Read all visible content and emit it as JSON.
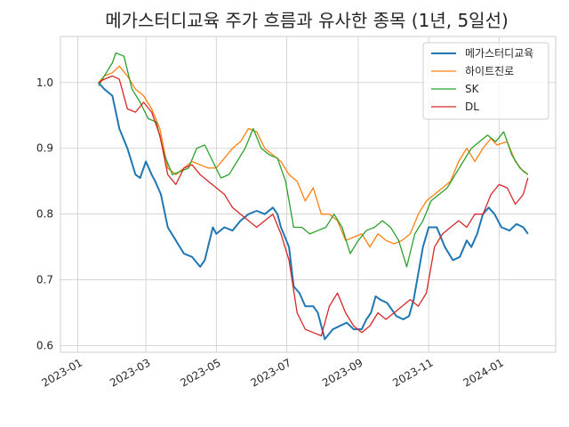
{
  "chart_data": {
    "type": "line",
    "title": "메가스터디교육 주가 흐름과 유사한 종목 (1년, 5일선)",
    "xlabel": "",
    "ylabel": "",
    "x_ticks": [
      "2023-01",
      "2023-03",
      "2023-05",
      "2023-07",
      "2023-09",
      "2023-11",
      "2024-01"
    ],
    "y_ticks": [
      "0.6",
      "0.7",
      "0.8",
      "0.9",
      "1.0"
    ],
    "xlim": [
      "2022-12-17",
      "2024-02-19"
    ],
    "ylim": [
      0.59,
      1.07
    ],
    "grid": true,
    "legend_position": "upper right",
    "series": [
      {
        "name": "메가스터디교육",
        "color": "#1f77b4",
        "points": [
          [
            "2023-01-19",
            1.0
          ],
          [
            "2023-01-24",
            0.99
          ],
          [
            "2023-01-31",
            0.98
          ],
          [
            "2023-02-06",
            0.93
          ],
          [
            "2023-02-13",
            0.9
          ],
          [
            "2023-02-20",
            0.86
          ],
          [
            "2023-02-24",
            0.855
          ],
          [
            "2023-03-01",
            0.88
          ],
          [
            "2023-03-06",
            0.86
          ],
          [
            "2023-03-09",
            0.85
          ],
          [
            "2023-03-14",
            0.83
          ],
          [
            "2023-03-20",
            0.78
          ],
          [
            "2023-03-27",
            0.76
          ],
          [
            "2023-04-03",
            0.74
          ],
          [
            "2023-04-10",
            0.735
          ],
          [
            "2023-04-17",
            0.72
          ],
          [
            "2023-04-21",
            0.73
          ],
          [
            "2023-04-28",
            0.78
          ],
          [
            "2023-05-01",
            0.77
          ],
          [
            "2023-05-08",
            0.78
          ],
          [
            "2023-05-15",
            0.775
          ],
          [
            "2023-05-22",
            0.79
          ],
          [
            "2023-05-29",
            0.8
          ],
          [
            "2023-06-05",
            0.805
          ],
          [
            "2023-06-12",
            0.8
          ],
          [
            "2023-06-19",
            0.81
          ],
          [
            "2023-06-23",
            0.8
          ],
          [
            "2023-06-26",
            0.78
          ],
          [
            "2023-07-03",
            0.75
          ],
          [
            "2023-07-07",
            0.69
          ],
          [
            "2023-07-12",
            0.68
          ],
          [
            "2023-07-17",
            0.66
          ],
          [
            "2023-07-24",
            0.66
          ],
          [
            "2023-07-28",
            0.65
          ],
          [
            "2023-08-03",
            0.61
          ],
          [
            "2023-08-10",
            0.625
          ],
          [
            "2023-08-16",
            0.63
          ],
          [
            "2023-08-22",
            0.635
          ],
          [
            "2023-08-28",
            0.625
          ],
          [
            "2023-09-04",
            0.625
          ],
          [
            "2023-09-08",
            0.64
          ],
          [
            "2023-09-12",
            0.65
          ],
          [
            "2023-09-16",
            0.675
          ],
          [
            "2023-09-20",
            0.67
          ],
          [
            "2023-09-26",
            0.665
          ],
          [
            "2023-10-04",
            0.645
          ],
          [
            "2023-10-10",
            0.64
          ],
          [
            "2023-10-15",
            0.645
          ],
          [
            "2023-10-19",
            0.67
          ],
          [
            "2023-10-24",
            0.72
          ],
          [
            "2023-10-27",
            0.75
          ],
          [
            "2023-11-01",
            0.78
          ],
          [
            "2023-11-08",
            0.78
          ],
          [
            "2023-11-15",
            0.75
          ],
          [
            "2023-11-22",
            0.73
          ],
          [
            "2023-11-28",
            0.735
          ],
          [
            "2023-12-04",
            0.76
          ],
          [
            "2023-12-08",
            0.75
          ],
          [
            "2023-12-13",
            0.77
          ],
          [
            "2023-12-18",
            0.8
          ],
          [
            "2023-12-23",
            0.81
          ],
          [
            "2023-12-28",
            0.8
          ],
          [
            "2024-01-03",
            0.78
          ],
          [
            "2024-01-10",
            0.775
          ],
          [
            "2024-01-16",
            0.785
          ],
          [
            "2024-01-22",
            0.78
          ],
          [
            "2024-01-26",
            0.77
          ]
        ]
      },
      {
        "name": "하이트진로",
        "color": "#ff7f0e",
        "points": [
          [
            "2023-01-19",
            1.0
          ],
          [
            "2023-01-24",
            1.01
          ],
          [
            "2023-01-31",
            1.015
          ],
          [
            "2023-02-06",
            1.025
          ],
          [
            "2023-02-13",
            1.01
          ],
          [
            "2023-02-20",
            0.99
          ],
          [
            "2023-02-27",
            0.98
          ],
          [
            "2023-03-06",
            0.96
          ],
          [
            "2023-03-13",
            0.93
          ],
          [
            "2023-03-20",
            0.87
          ],
          [
            "2023-03-27",
            0.86
          ],
          [
            "2023-04-03",
            0.87
          ],
          [
            "2023-04-10",
            0.88
          ],
          [
            "2023-04-17",
            0.875
          ],
          [
            "2023-04-24",
            0.87
          ],
          [
            "2023-05-01",
            0.87
          ],
          [
            "2023-05-08",
            0.885
          ],
          [
            "2023-05-15",
            0.9
          ],
          [
            "2023-05-22",
            0.91
          ],
          [
            "2023-05-29",
            0.93
          ],
          [
            "2023-06-05",
            0.925
          ],
          [
            "2023-06-12",
            0.9
          ],
          [
            "2023-06-19",
            0.89
          ],
          [
            "2023-06-26",
            0.88
          ],
          [
            "2023-07-03",
            0.86
          ],
          [
            "2023-07-10",
            0.85
          ],
          [
            "2023-07-17",
            0.82
          ],
          [
            "2023-07-24",
            0.84
          ],
          [
            "2023-07-31",
            0.8
          ],
          [
            "2023-08-07",
            0.8
          ],
          [
            "2023-08-14",
            0.79
          ],
          [
            "2023-08-21",
            0.76
          ],
          [
            "2023-08-28",
            0.765
          ],
          [
            "2023-09-04",
            0.77
          ],
          [
            "2023-09-11",
            0.75
          ],
          [
            "2023-09-18",
            0.77
          ],
          [
            "2023-09-25",
            0.76
          ],
          [
            "2023-10-02",
            0.755
          ],
          [
            "2023-10-09",
            0.76
          ],
          [
            "2023-10-16",
            0.77
          ],
          [
            "2023-10-23",
            0.8
          ],
          [
            "2023-10-30",
            0.82
          ],
          [
            "2023-11-06",
            0.83
          ],
          [
            "2023-11-13",
            0.84
          ],
          [
            "2023-11-20",
            0.85
          ],
          [
            "2023-11-27",
            0.88
          ],
          [
            "2023-12-04",
            0.9
          ],
          [
            "2023-12-11",
            0.88
          ],
          [
            "2023-12-18",
            0.9
          ],
          [
            "2023-12-25",
            0.915
          ],
          [
            "2023-12-30",
            0.905
          ],
          [
            "2024-01-08",
            0.91
          ],
          [
            "2024-01-15",
            0.88
          ],
          [
            "2024-01-22",
            0.865
          ],
          [
            "2024-01-26",
            0.86
          ]
        ]
      },
      {
        "name": "SK",
        "color": "#2ca02c",
        "points": [
          [
            "2023-01-19",
            0.995
          ],
          [
            "2023-01-24",
            1.01
          ],
          [
            "2023-01-31",
            1.03
          ],
          [
            "2023-02-03",
            1.045
          ],
          [
            "2023-02-10",
            1.04
          ],
          [
            "2023-02-17",
            0.99
          ],
          [
            "2023-02-24",
            0.97
          ],
          [
            "2023-03-03",
            0.945
          ],
          [
            "2023-03-10",
            0.94
          ],
          [
            "2023-03-17",
            0.89
          ],
          [
            "2023-03-24",
            0.86
          ],
          [
            "2023-03-31",
            0.865
          ],
          [
            "2023-04-07",
            0.87
          ],
          [
            "2023-04-14",
            0.9
          ],
          [
            "2023-04-21",
            0.905
          ],
          [
            "2023-04-28",
            0.88
          ],
          [
            "2023-05-05",
            0.855
          ],
          [
            "2023-05-12",
            0.86
          ],
          [
            "2023-05-19",
            0.88
          ],
          [
            "2023-05-26",
            0.9
          ],
          [
            "2023-06-02",
            0.93
          ],
          [
            "2023-06-09",
            0.9
          ],
          [
            "2023-06-16",
            0.89
          ],
          [
            "2023-06-23",
            0.885
          ],
          [
            "2023-06-30",
            0.85
          ],
          [
            "2023-07-07",
            0.78
          ],
          [
            "2023-07-14",
            0.78
          ],
          [
            "2023-07-21",
            0.77
          ],
          [
            "2023-07-28",
            0.775
          ],
          [
            "2023-08-04",
            0.78
          ],
          [
            "2023-08-11",
            0.8
          ],
          [
            "2023-08-18",
            0.78
          ],
          [
            "2023-08-25",
            0.74
          ],
          [
            "2023-09-01",
            0.76
          ],
          [
            "2023-09-08",
            0.775
          ],
          [
            "2023-09-15",
            0.78
          ],
          [
            "2023-09-22",
            0.79
          ],
          [
            "2023-09-29",
            0.78
          ],
          [
            "2023-10-06",
            0.76
          ],
          [
            "2023-10-13",
            0.72
          ],
          [
            "2023-10-20",
            0.77
          ],
          [
            "2023-10-27",
            0.79
          ],
          [
            "2023-11-03",
            0.82
          ],
          [
            "2023-11-10",
            0.83
          ],
          [
            "2023-11-17",
            0.84
          ],
          [
            "2023-11-24",
            0.86
          ],
          [
            "2023-12-01",
            0.88
          ],
          [
            "2023-12-08",
            0.9
          ],
          [
            "2023-12-15",
            0.91
          ],
          [
            "2023-12-22",
            0.92
          ],
          [
            "2023-12-29",
            0.91
          ],
          [
            "2024-01-05",
            0.925
          ],
          [
            "2024-01-12",
            0.89
          ],
          [
            "2024-01-19",
            0.87
          ],
          [
            "2024-01-26",
            0.86
          ]
        ]
      },
      {
        "name": "DL",
        "color": "#d62728",
        "points": [
          [
            "2023-01-19",
            1.0
          ],
          [
            "2023-01-24",
            1.005
          ],
          [
            "2023-01-31",
            1.01
          ],
          [
            "2023-02-06",
            1.005
          ],
          [
            "2023-02-13",
            0.96
          ],
          [
            "2023-02-20",
            0.955
          ],
          [
            "2023-02-27",
            0.97
          ],
          [
            "2023-03-06",
            0.955
          ],
          [
            "2023-03-13",
            0.92
          ],
          [
            "2023-03-20",
            0.86
          ],
          [
            "2023-03-27",
            0.845
          ],
          [
            "2023-04-03",
            0.87
          ],
          [
            "2023-04-10",
            0.875
          ],
          [
            "2023-04-17",
            0.86
          ],
          [
            "2023-04-24",
            0.85
          ],
          [
            "2023-05-01",
            0.84
          ],
          [
            "2023-05-08",
            0.83
          ],
          [
            "2023-05-15",
            0.81
          ],
          [
            "2023-05-22",
            0.8
          ],
          [
            "2023-05-29",
            0.79
          ],
          [
            "2023-06-05",
            0.78
          ],
          [
            "2023-06-12",
            0.79
          ],
          [
            "2023-06-19",
            0.8
          ],
          [
            "2023-06-26",
            0.77
          ],
          [
            "2023-07-03",
            0.73
          ],
          [
            "2023-07-10",
            0.65
          ],
          [
            "2023-07-17",
            0.625
          ],
          [
            "2023-07-24",
            0.62
          ],
          [
            "2023-07-31",
            0.615
          ],
          [
            "2023-08-07",
            0.66
          ],
          [
            "2023-08-14",
            0.68
          ],
          [
            "2023-08-21",
            0.65
          ],
          [
            "2023-08-28",
            0.63
          ],
          [
            "2023-09-04",
            0.62
          ],
          [
            "2023-09-11",
            0.63
          ],
          [
            "2023-09-18",
            0.65
          ],
          [
            "2023-09-25",
            0.64
          ],
          [
            "2023-10-02",
            0.65
          ],
          [
            "2023-10-09",
            0.66
          ],
          [
            "2023-10-16",
            0.67
          ],
          [
            "2023-10-23",
            0.66
          ],
          [
            "2023-10-30",
            0.68
          ],
          [
            "2023-11-06",
            0.75
          ],
          [
            "2023-11-13",
            0.77
          ],
          [
            "2023-11-20",
            0.78
          ],
          [
            "2023-11-27",
            0.79
          ],
          [
            "2023-12-04",
            0.78
          ],
          [
            "2023-12-11",
            0.8
          ],
          [
            "2023-12-18",
            0.8
          ],
          [
            "2023-12-25",
            0.83
          ],
          [
            "2024-01-01",
            0.845
          ],
          [
            "2024-01-08",
            0.84
          ],
          [
            "2024-01-15",
            0.815
          ],
          [
            "2024-01-22",
            0.83
          ],
          [
            "2024-01-26",
            0.855
          ]
        ]
      }
    ]
  }
}
